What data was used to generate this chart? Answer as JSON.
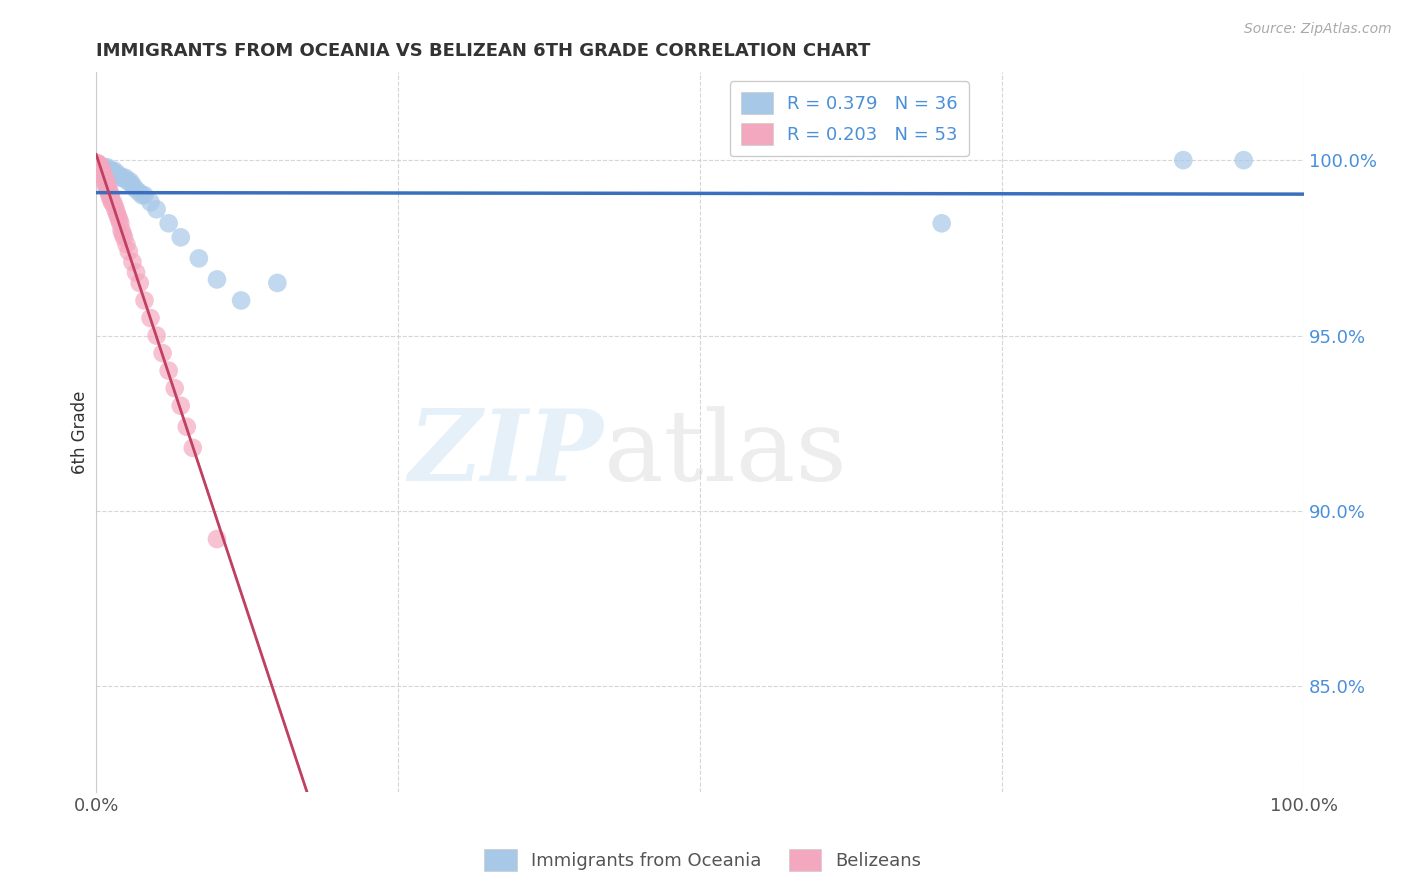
{
  "title": "IMMIGRANTS FROM OCEANIA VS BELIZEAN 6TH GRADE CORRELATION CHART",
  "source": "Source: ZipAtlas.com",
  "ylabel": "6th Grade",
  "xlim": [
    0.0,
    1.0
  ],
  "ylim": [
    0.82,
    1.025
  ],
  "xticks": [
    0.0,
    0.25,
    0.5,
    0.75,
    1.0
  ],
  "xtick_labels": [
    "0.0%",
    "",
    "",
    "",
    "100.0%"
  ],
  "ytick_labels": [
    "85.0%",
    "90.0%",
    "95.0%",
    "100.0%"
  ],
  "yticks": [
    0.85,
    0.9,
    0.95,
    1.0
  ],
  "blue_color": "#a8c8e8",
  "pink_color": "#f4a8c0",
  "blue_line_color": "#3a6fbe",
  "pink_line_color": "#c04060",
  "blue_scatter": {
    "x": [
      0.001,
      0.002,
      0.004,
      0.006,
      0.007,
      0.008,
      0.009,
      0.01,
      0.011,
      0.012,
      0.013,
      0.014,
      0.015,
      0.016,
      0.018,
      0.02,
      0.022,
      0.024,
      0.026,
      0.028,
      0.03,
      0.032,
      0.035,
      0.038,
      0.04,
      0.045,
      0.05,
      0.06,
      0.07,
      0.085,
      0.1,
      0.12,
      0.15,
      0.7,
      0.9,
      0.95
    ],
    "y": [
      0.998,
      0.998,
      0.998,
      0.998,
      0.997,
      0.997,
      0.998,
      0.997,
      0.997,
      0.997,
      0.997,
      0.996,
      0.997,
      0.996,
      0.996,
      0.995,
      0.995,
      0.995,
      0.994,
      0.994,
      0.993,
      0.992,
      0.991,
      0.99,
      0.99,
      0.988,
      0.986,
      0.982,
      0.978,
      0.972,
      0.966,
      0.96,
      0.965,
      0.982,
      1.0,
      1.0
    ]
  },
  "pink_scatter": {
    "x": [
      0.0003,
      0.0005,
      0.0008,
      0.001,
      0.001,
      0.002,
      0.002,
      0.003,
      0.003,
      0.004,
      0.004,
      0.005,
      0.005,
      0.006,
      0.006,
      0.007,
      0.007,
      0.008,
      0.008,
      0.009,
      0.009,
      0.01,
      0.01,
      0.011,
      0.011,
      0.012,
      0.012,
      0.013,
      0.014,
      0.015,
      0.016,
      0.017,
      0.018,
      0.019,
      0.02,
      0.021,
      0.022,
      0.023,
      0.025,
      0.027,
      0.03,
      0.033,
      0.036,
      0.04,
      0.045,
      0.05,
      0.055,
      0.06,
      0.065,
      0.07,
      0.075,
      0.08,
      0.1
    ],
    "y": [
      0.999,
      0.999,
      0.999,
      0.999,
      0.998,
      0.999,
      0.998,
      0.998,
      0.997,
      0.998,
      0.997,
      0.997,
      0.996,
      0.996,
      0.995,
      0.995,
      0.994,
      0.994,
      0.993,
      0.993,
      0.992,
      0.992,
      0.991,
      0.991,
      0.99,
      0.99,
      0.989,
      0.988,
      0.988,
      0.987,
      0.986,
      0.985,
      0.984,
      0.983,
      0.982,
      0.98,
      0.979,
      0.978,
      0.976,
      0.974,
      0.971,
      0.968,
      0.965,
      0.96,
      0.955,
      0.95,
      0.945,
      0.94,
      0.935,
      0.93,
      0.924,
      0.918,
      0.892
    ]
  }
}
